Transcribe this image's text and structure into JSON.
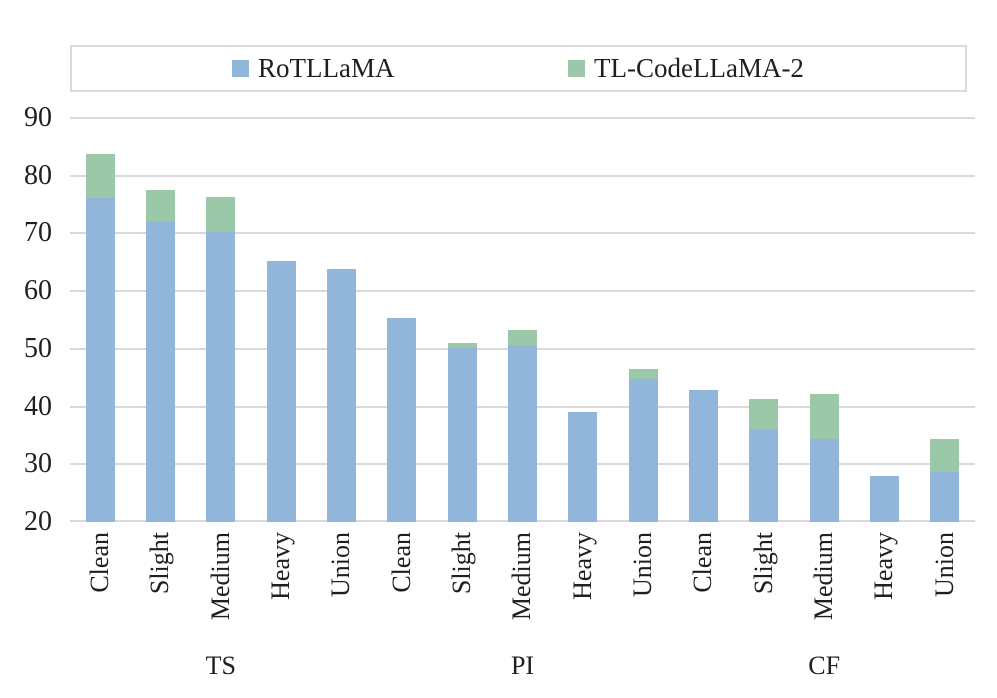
{
  "legend": {
    "items": [
      {
        "label": "RoTLLaMA",
        "color": "#92b5da"
      },
      {
        "label": "TL-CodeLLaMA-2",
        "color": "#9bc8a8"
      }
    ]
  },
  "colors": {
    "series_blue": "#92b5da",
    "series_green": "#9bc8a8",
    "gridline": "#d9d9d9",
    "text": "#1f1f1f"
  },
  "chart_data": {
    "type": "bar",
    "stacked": true,
    "title": "",
    "xlabel": "",
    "ylabel": "",
    "ylim": [
      20,
      90
    ],
    "y_ticks": [
      20,
      30,
      40,
      50,
      60,
      70,
      80,
      90
    ],
    "grid": true,
    "legend_position": "top",
    "groups": [
      "TS",
      "PI",
      "CF"
    ],
    "categories": [
      "Clean",
      "Slight",
      "Medium",
      "Heavy",
      "Union",
      "Clean",
      "Slight",
      "Medium",
      "Heavy",
      "Union",
      "Clean",
      "Slight",
      "Medium",
      "Heavy",
      "Union"
    ],
    "series": [
      {
        "name": "RoTLLaMA",
        "color": "#92b5da",
        "values": [
          76.2,
          72.2,
          70.3,
          65.3,
          63.8,
          55.3,
          50.1,
          50.6,
          39.0,
          44.7,
          42.9,
          36.2,
          34.3,
          28.0,
          28.6
        ]
      },
      {
        "name": "TL-CodeLLaMA-2",
        "color": "#9bc8a8",
        "values": [
          7.5,
          5.4,
          6.1,
          0,
          0,
          0,
          0.9,
          2.7,
          0,
          1.9,
          0,
          5.1,
          7.9,
          0,
          5.7
        ]
      }
    ]
  }
}
